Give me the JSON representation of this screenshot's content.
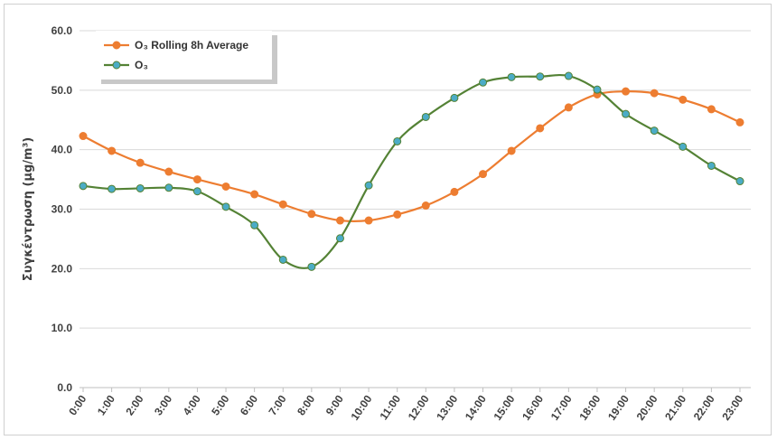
{
  "chart_data": {
    "type": "line",
    "title": "",
    "xlabel": "",
    "ylabel": "Συγκέντρωση (μg/m³)",
    "ylim": [
      0,
      60
    ],
    "yticks": [
      "0.0",
      "10.0",
      "20.0",
      "30.0",
      "40.0",
      "50.0",
      "60.0"
    ],
    "grid": true,
    "legend_position": "top-left",
    "categories": [
      "0:00",
      "1:00",
      "2:00",
      "3:00",
      "4:00",
      "5:00",
      "6:00",
      "7:00",
      "8:00",
      "9:00",
      "10:00",
      "11:00",
      "12:00",
      "13:00",
      "14:00",
      "15:00",
      "16:00",
      "17:00",
      "18:00",
      "19:00",
      "20:00",
      "21:00",
      "22:00",
      "23:00"
    ],
    "series": [
      {
        "name": "O₃ Rolling 8h Average",
        "color": "#ed7d31",
        "marker_color": "#ed7d31",
        "values": [
          42.3,
          39.8,
          37.8,
          36.3,
          35.0,
          33.8,
          32.5,
          30.8,
          29.2,
          28.1,
          28.1,
          29.1,
          30.6,
          32.9,
          35.9,
          39.8,
          43.6,
          47.1,
          49.3,
          49.8,
          49.5,
          48.4,
          46.8,
          44.6
        ]
      },
      {
        "name": "O₃",
        "color": "#548235",
        "marker_color": "#4bacc6",
        "values": [
          33.9,
          33.4,
          33.5,
          33.6,
          33.0,
          30.4,
          27.3,
          21.5,
          20.3,
          25.1,
          34.0,
          41.4,
          45.5,
          48.7,
          51.3,
          52.2,
          52.3,
          52.4,
          50.1,
          46.0,
          43.2,
          40.5,
          37.3,
          34.7
        ]
      }
    ]
  }
}
